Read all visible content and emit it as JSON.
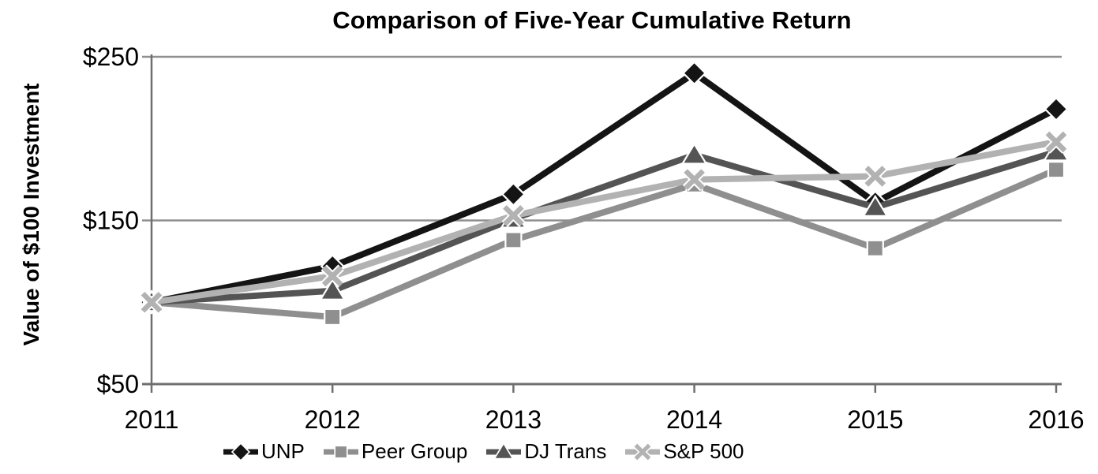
{
  "figure": {
    "background": "#ffffff"
  },
  "chart_data": {
    "type": "line",
    "title": "Comparison of Five-Year Cumulative Return",
    "xlabel": "",
    "ylabel": "Value of $100 Investment",
    "categories": [
      "2011",
      "2012",
      "2013",
      "2014",
      "2015",
      "2016"
    ],
    "series": [
      {
        "name": "UNP",
        "marker": "diamond",
        "color": "#141414",
        "values": [
          100,
          122,
          166,
          240,
          161,
          218
        ]
      },
      {
        "name": "Peer Group",
        "marker": "square",
        "color": "#8f8f8f",
        "values": [
          100,
          91,
          138,
          172,
          133,
          181
        ]
      },
      {
        "name": "DJ Trans",
        "marker": "triangle",
        "color": "#545454",
        "values": [
          100,
          107,
          151,
          190,
          158,
          192
        ]
      },
      {
        "name": "S&P 500",
        "marker": "x",
        "color": "#b2b2b2",
        "values": [
          100,
          116,
          153,
          175,
          177,
          198
        ]
      }
    ],
    "y_ticks": [
      {
        "label": "$250",
        "value": 250
      },
      {
        "label": "$150",
        "value": 150
      },
      {
        "label": "$50",
        "value": 50
      }
    ],
    "ylim": [
      50,
      250
    ],
    "grid": "horizontal-only",
    "legend_position": "bottom",
    "axis_color": "#6e6e6e",
    "gridline_color": "#8f8f8f",
    "tick_label_color": "#000000"
  }
}
